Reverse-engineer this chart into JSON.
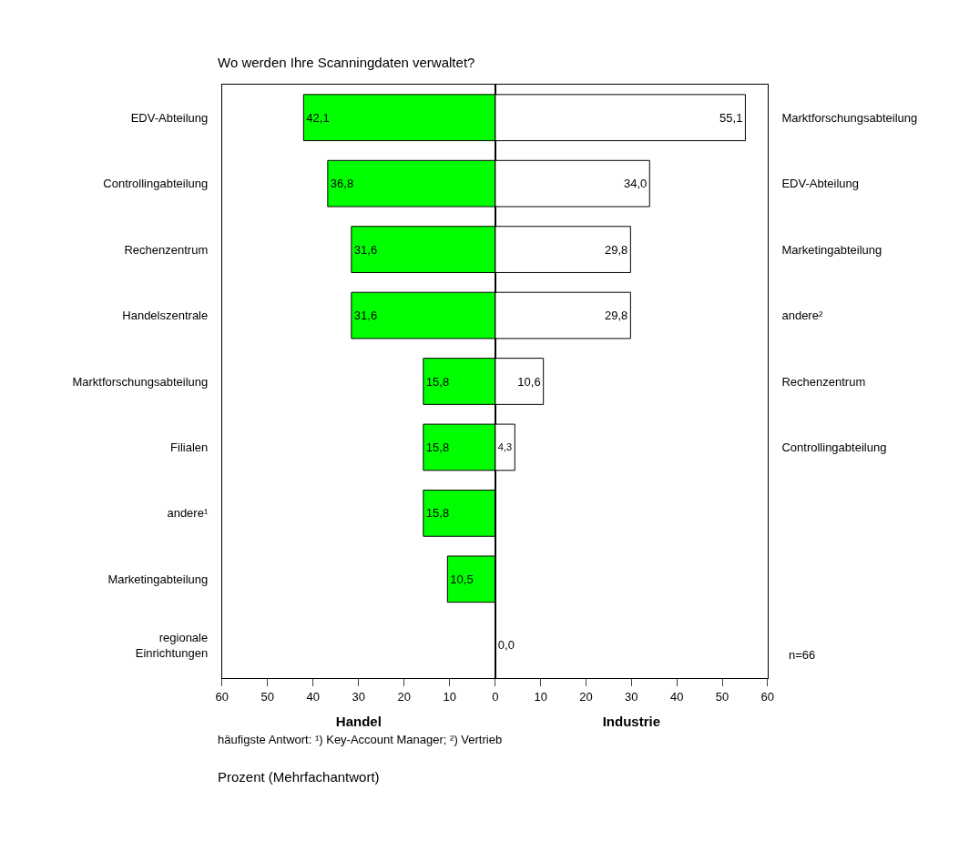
{
  "chart_data": [
    {
      "type": "bar",
      "orientation": "horizontal",
      "title": "Wo werden Ihre Scanningdaten verwaltet?",
      "xlabel": "Handel",
      "categories": [
        "EDV-Abteilung",
        "Controllingabteilung",
        "Rechenzentrum",
        "Handelszentrale",
        "Marktforschungsabteilung",
        "Filialen",
        "andere¹",
        "Marketingabteilung",
        "regionale Einrichtungen"
      ],
      "values": [
        42.1,
        36.8,
        31.6,
        31.6,
        15.8,
        15.8,
        15.8,
        10.5,
        0.0
      ],
      "value_labels": [
        "42,1",
        "36,8",
        "31,6",
        "31,6",
        "15,8",
        "15,8",
        "15,8",
        "10,5",
        "0,0"
      ],
      "color": "#00ff00",
      "xlim": [
        60,
        0
      ],
      "xticks": [
        60,
        50,
        40,
        30,
        20,
        10,
        0
      ],
      "legend": false,
      "annotations": [
        "häufigste Antwort: ¹) Key-Account Manager; ²) Vertrieb",
        "Prozent (Mehrfachantwort)"
      ]
    },
    {
      "type": "bar",
      "orientation": "horizontal",
      "xlabel": "Industrie",
      "categories": [
        "Marktforschungsabteilung",
        "EDV-Abteilung",
        "Marketingabteilung",
        "andere²",
        "Rechenzentrum",
        "Controllingabteilung",
        null,
        null,
        null
      ],
      "values": [
        55.1,
        34.0,
        29.8,
        29.8,
        10.6,
        4.3,
        null,
        null,
        null
      ],
      "value_labels": [
        "55,1",
        "34,0",
        "29,8",
        "29,8",
        "10,6",
        "4,3",
        null,
        null,
        null
      ],
      "color": "#ffffff",
      "xlim": [
        0,
        60
      ],
      "xticks": [
        10,
        20,
        30,
        40,
        50,
        60
      ],
      "legend": false,
      "annotations": [
        "n=66"
      ]
    }
  ]
}
